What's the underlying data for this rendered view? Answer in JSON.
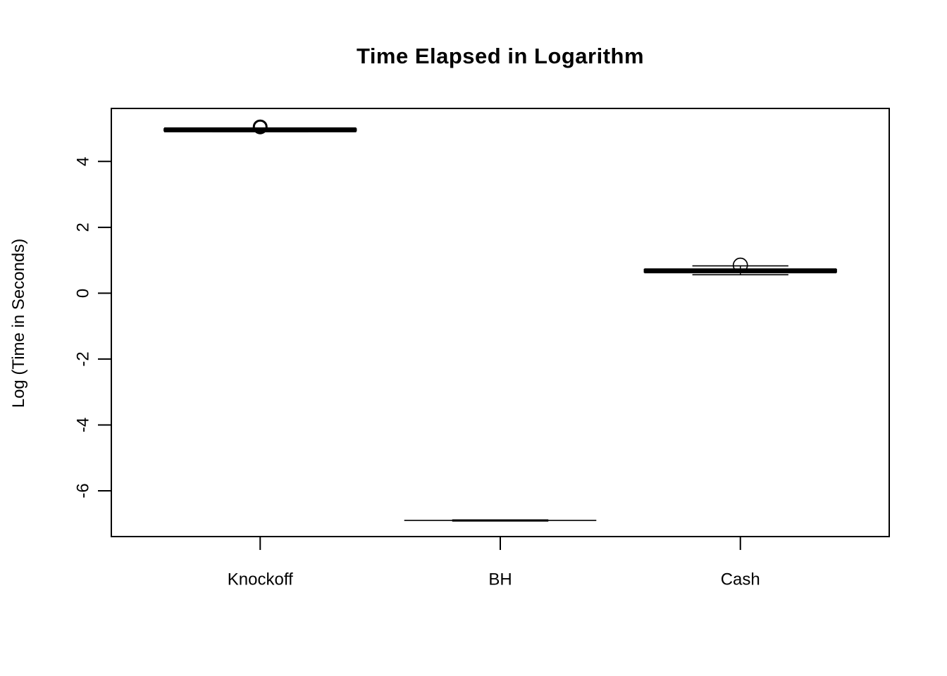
{
  "chart_data": {
    "type": "boxplot",
    "title": "Time Elapsed in Logarithm",
    "xlabel": "",
    "ylabel": "Log (Time in Seconds)",
    "categories": [
      "Knockoff",
      "BH",
      "Cash"
    ],
    "x_positions": [
      1,
      2,
      3
    ],
    "yticks": [
      4,
      2,
      0,
      -2,
      -4,
      -6
    ],
    "xlim": [
      0.38,
      3.62
    ],
    "ylim": [
      -7.39,
      5.61
    ],
    "boxwex": 0.8,
    "grid": false,
    "legend": null,
    "colors": {
      "foreground": "#000000",
      "background": "#ffffff"
    },
    "series": [
      {
        "name": "Knockoff",
        "x": 1,
        "median": 4.96,
        "q1": 4.93,
        "q3": 4.99,
        "whisker_low": 4.91,
        "whisker_high": 5.0,
        "outliers": [
          5.05
        ],
        "style": {
          "median_lwd": 7,
          "box_lwd": 1.7,
          "staple_lwd": 1.7,
          "outlier_r": 9,
          "outlier_lwd": 3
        }
      },
      {
        "name": "BH",
        "x": 2,
        "median": -6.9,
        "q1": -6.9,
        "q3": -6.9,
        "whisker_low": -6.9,
        "whisker_high": -6.9,
        "outliers": [],
        "style": {
          "median_lwd": 0,
          "box_lwd": 1.7,
          "staple_lwd": 3,
          "outlier_r": 9,
          "outlier_lwd": 1.7
        }
      },
      {
        "name": "Cash",
        "x": 3,
        "median": 0.68,
        "q1": 0.64,
        "q3": 0.72,
        "whisker_low": 0.56,
        "whisker_high": 0.83,
        "outliers": [
          0.85
        ],
        "style": {
          "median_lwd": 7,
          "box_lwd": 1.7,
          "staple_lwd": 1.7,
          "outlier_r": 10,
          "outlier_lwd": 1.7
        }
      }
    ]
  }
}
